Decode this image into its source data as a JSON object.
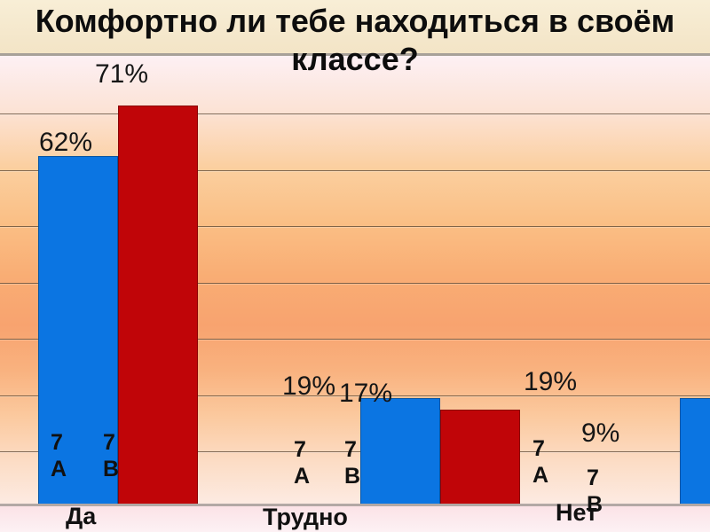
{
  "slide": {
    "title_lines": [
      "Комфортно ли тебе находиться в своём",
      "классе?"
    ]
  },
  "chart_data": {
    "type": "bar",
    "title": "Комфортно ли тебе находиться в своём классе?",
    "categories": [
      "Да",
      "Трудно",
      "Нет"
    ],
    "series": [
      {
        "name": "7 А",
        "color": "#0b75e2",
        "values": [
          62,
          19,
          19
        ]
      },
      {
        "name": "7 В",
        "color": "#c00508",
        "values": [
          71,
          17,
          9
        ]
      }
    ],
    "value_labels": [
      "62%",
      "71%",
      "19%",
      "17%",
      "19%",
      "9%"
    ],
    "value_suffix": "%",
    "ylim": [
      0,
      80
    ],
    "gridline_step": 10,
    "grid": true,
    "legend_position": "inline-bar-labels",
    "notes": "third category red bar (9%) is cut off beyond right edge of slide"
  },
  "colors": {
    "series_a_blue": "#0b75e2",
    "series_b_red": "#c00508",
    "plot_top_line": "#a7a099",
    "axis_baseline": "#b3a8a5",
    "gridline": "#60503a",
    "background_peak_orange": "#f8a36f",
    "background_cream": "#f8eed6",
    "background_pink": "#fdf0f4"
  }
}
